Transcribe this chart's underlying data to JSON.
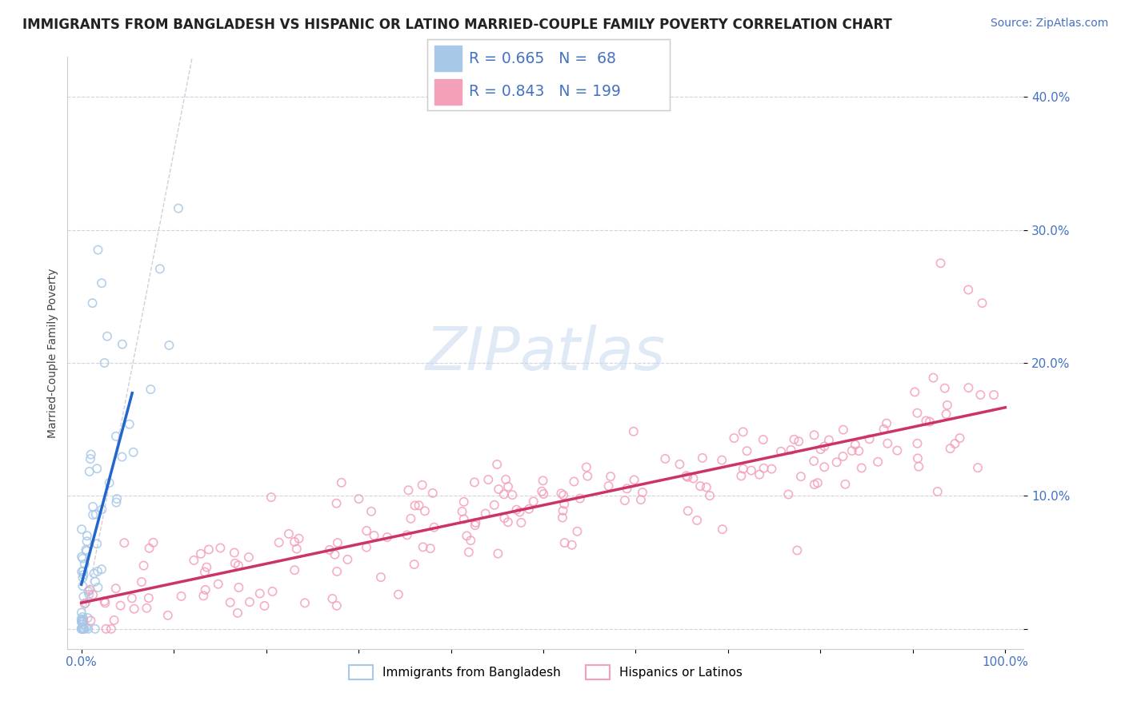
{
  "title": "IMMIGRANTS FROM BANGLADESH VS HISPANIC OR LATINO MARRIED-COUPLE FAMILY POVERTY CORRELATION CHART",
  "source": "Source: ZipAtlas.com",
  "ylabel": "Married-Couple Family Poverty",
  "legend_label1": "Immigrants from Bangladesh",
  "legend_label2": "Hispanics or Latinos",
  "R1": 0.665,
  "N1": 68,
  "R2": 0.843,
  "N2": 199,
  "color1": "#a8c8e8",
  "color2": "#f4a0b8",
  "line_color1": "#2266cc",
  "line_color2": "#cc3366",
  "background_color": "#ffffff",
  "xlim": [
    -1.5,
    102
  ],
  "ylim": [
    -1.5,
    43
  ],
  "xticks": [
    0,
    10,
    20,
    30,
    40,
    50,
    60,
    70,
    80,
    90,
    100
  ],
  "yticks": [
    0,
    10,
    20,
    30,
    40
  ],
  "tick_color": "#4472c4",
  "grid_color": "#ccccdd",
  "title_fontsize": 12,
  "source_fontsize": 10,
  "axis_fontsize": 11
}
